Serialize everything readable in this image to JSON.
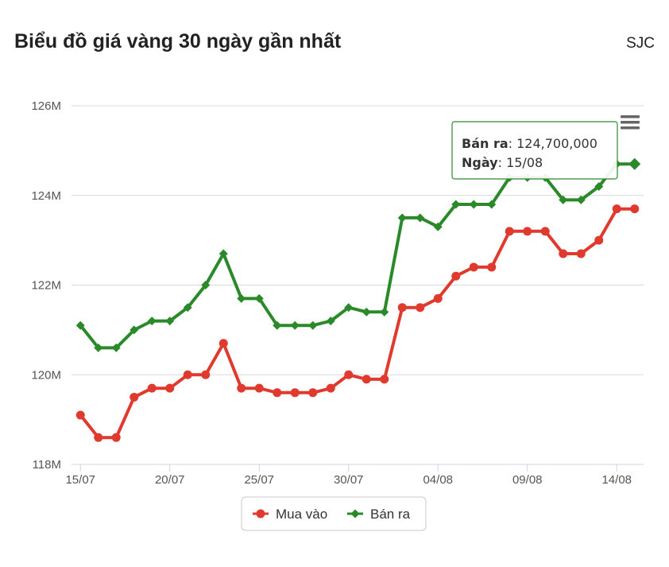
{
  "header": {
    "title": "Biểu đồ giá vàng 30 ngày gần nhất",
    "source": "SJC"
  },
  "menu_icon": "hamburger-menu-icon",
  "chart_data": {
    "type": "line",
    "x": [
      "15/07",
      "16/07",
      "17/07",
      "18/07",
      "19/07",
      "20/07",
      "21/07",
      "22/07",
      "23/07",
      "24/07",
      "25/07",
      "26/07",
      "27/07",
      "28/07",
      "29/07",
      "30/07",
      "31/07",
      "01/08",
      "02/08",
      "03/08",
      "04/08",
      "05/08",
      "06/08",
      "07/08",
      "08/08",
      "09/08",
      "10/08",
      "11/08",
      "12/08",
      "13/08",
      "14/08",
      "15/08"
    ],
    "x_tick_labels": [
      "15/07",
      "20/07",
      "25/07",
      "30/07",
      "04/08",
      "09/08",
      "14/08"
    ],
    "y_tick_labels": [
      "118M",
      "120M",
      "122M",
      "124M",
      "126M"
    ],
    "ylim": [
      118000000,
      126000000
    ],
    "y_ticks": [
      118000000,
      120000000,
      122000000,
      124000000,
      126000000
    ],
    "grid": true,
    "legend_position": "bottom-center",
    "series": [
      {
        "name": "Mua vào",
        "color": "#e03a2f",
        "marker": "circle",
        "values": [
          119100000,
          118600000,
          118600000,
          119500000,
          119700000,
          119700000,
          120000000,
          120000000,
          120700000,
          119700000,
          119700000,
          119600000,
          119600000,
          119600000,
          119700000,
          120000000,
          119900000,
          119900000,
          121500000,
          121500000,
          121700000,
          122200000,
          122400000,
          122400000,
          123200000,
          123200000,
          123200000,
          122700000,
          122700000,
          123000000,
          123700000,
          123700000
        ]
      },
      {
        "name": "Bán ra",
        "color": "#2a8a2a",
        "marker": "diamond",
        "values": [
          121100000,
          120600000,
          120600000,
          121000000,
          121200000,
          121200000,
          121500000,
          122000000,
          122700000,
          121700000,
          121700000,
          121100000,
          121100000,
          121100000,
          121200000,
          121500000,
          121400000,
          121400000,
          123500000,
          123500000,
          123300000,
          123800000,
          123800000,
          123800000,
          124400000,
          124400000,
          124400000,
          123900000,
          123900000,
          124200000,
          124700000,
          124700000
        ]
      }
    ],
    "tooltip": {
      "series_label": "Bán ra",
      "value_text": "124,700,000",
      "date_label": "Ngày",
      "date_text": "15/08"
    }
  }
}
